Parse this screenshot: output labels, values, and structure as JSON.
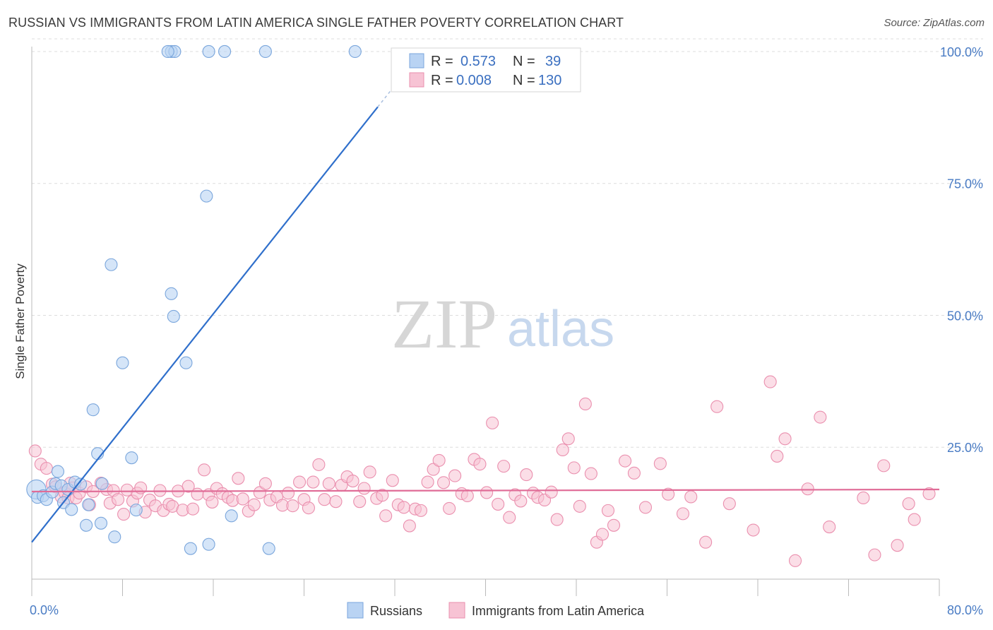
{
  "title": "RUSSIAN VS IMMIGRANTS FROM LATIN AMERICA SINGLE FATHER POVERTY CORRELATION CHART",
  "source": "Source: ZipAtlas.com",
  "watermark": {
    "zip": "ZIP",
    "atlas": "atlas"
  },
  "colors": {
    "blue_fill": "#b9d3f3",
    "blue_stroke": "#7aa6dc",
    "blue_line": "#2f6fcb",
    "pink_fill": "#f7c3d4",
    "pink_stroke": "#ea8fae",
    "pink_line": "#e06c97",
    "grid": "#dddddd",
    "axis": "#bbbbbb",
    "tick_text": "#4a7cc4"
  },
  "stats": {
    "r_label": "R =",
    "n_label": "N =",
    "series1": {
      "r": "0.573",
      "n": "39"
    },
    "series2": {
      "r": "0.008",
      "n": "130"
    }
  },
  "chart_data": {
    "type": "scatter",
    "title": "RUSSIAN VS IMMIGRANTS FROM LATIN AMERICA SINGLE FATHER POVERTY CORRELATION CHART",
    "xlabel": "",
    "ylabel": "Single Father Poverty",
    "xlim": [
      0,
      80
    ],
    "ylim": [
      0,
      102
    ],
    "x_ticks": [
      "0.0%",
      "80.0%"
    ],
    "y_ticks": [
      {
        "value": 25,
        "label": "25.0%"
      },
      {
        "value": 50,
        "label": "50.0%"
      },
      {
        "value": 75,
        "label": "75.0%"
      },
      {
        "value": 100,
        "label": "100.0%"
      }
    ],
    "legend_position": "bottom",
    "series": [
      {
        "name": "Russians",
        "trend": {
          "x0": 0,
          "y0": 7,
          "x1": 30.5,
          "y1": 89.5,
          "dash_x_end": 33
        },
        "points": [
          [
            0.4,
            17,
            1.6
          ],
          [
            0.5,
            15.5,
            1
          ],
          [
            1.0,
            15.8,
            1
          ],
          [
            1.3,
            15.1,
            1
          ],
          [
            1.8,
            16.5,
            1
          ],
          [
            2.1,
            18.1,
            1
          ],
          [
            2.3,
            20.4,
            1
          ],
          [
            2.6,
            17.7,
            1
          ],
          [
            2.8,
            14.5,
            1
          ],
          [
            3.2,
            17.0,
            1
          ],
          [
            3.5,
            13.2,
            1
          ],
          [
            3.8,
            18.4,
            1
          ],
          [
            4.3,
            18.0,
            1
          ],
          [
            4.8,
            10.2,
            1
          ],
          [
            5.0,
            14.1,
            1
          ],
          [
            5.4,
            32.1,
            1
          ],
          [
            5.8,
            23.8,
            1
          ],
          [
            6.1,
            10.6,
            1
          ],
          [
            6.2,
            18.1,
            1
          ],
          [
            7.0,
            59.6,
            1
          ],
          [
            7.3,
            8.0,
            1
          ],
          [
            8.0,
            41.0,
            1
          ],
          [
            8.8,
            23.0,
            1
          ],
          [
            9.2,
            13.1,
            1
          ],
          [
            12.3,
            54.1,
            1
          ],
          [
            12.5,
            49.8,
            1
          ],
          [
            13.6,
            41.0,
            1
          ],
          [
            15.4,
            72.6,
            1
          ],
          [
            14.0,
            5.8,
            1
          ],
          [
            15.6,
            6.6,
            1
          ],
          [
            17.6,
            12.0,
            1
          ],
          [
            20.9,
            5.8,
            1
          ],
          [
            12.3,
            100,
            1
          ],
          [
            12.6,
            100,
            1
          ],
          [
            15.6,
            100,
            1
          ],
          [
            17.0,
            100,
            1
          ],
          [
            20.6,
            100,
            1
          ],
          [
            28.5,
            100,
            1
          ],
          [
            12.0,
            100,
            1
          ]
        ]
      },
      {
        "name": "Immigrants from Latin America",
        "trend": {
          "x0": 0,
          "y0": 16.6,
          "x1": 80,
          "y1": 17
        },
        "points": [
          [
            0.3,
            24.3
          ],
          [
            0.8,
            21.8
          ],
          [
            1.3,
            21.0
          ],
          [
            1.8,
            18.0
          ],
          [
            2.1,
            17.5
          ],
          [
            2.6,
            15.6
          ],
          [
            2.9,
            16.4
          ],
          [
            3.2,
            15.4
          ],
          [
            3.4,
            18.2
          ],
          [
            3.6,
            17.3
          ],
          [
            3.9,
            15.4
          ],
          [
            4.2,
            16.3
          ],
          [
            4.8,
            17.5
          ],
          [
            5.1,
            14.1
          ],
          [
            5.4,
            16.6
          ],
          [
            6.1,
            18.2
          ],
          [
            6.6,
            17.0
          ],
          [
            6.9,
            14.4
          ],
          [
            7.2,
            16.8
          ],
          [
            7.6,
            15.1
          ],
          [
            8.1,
            12.3
          ],
          [
            8.4,
            16.9
          ],
          [
            8.9,
            14.8
          ],
          [
            9.3,
            16.3
          ],
          [
            9.6,
            17.3
          ],
          [
            10.0,
            12.7
          ],
          [
            10.4,
            15.0
          ],
          [
            10.9,
            13.9
          ],
          [
            11.3,
            16.8
          ],
          [
            11.6,
            13.0
          ],
          [
            12.1,
            14.2
          ],
          [
            12.4,
            13.8
          ],
          [
            12.9,
            16.7
          ],
          [
            13.3,
            13.1
          ],
          [
            13.8,
            17.6
          ],
          [
            14.2,
            13.3
          ],
          [
            14.6,
            16.1
          ],
          [
            15.2,
            20.7
          ],
          [
            15.6,
            16.0
          ],
          [
            15.9,
            14.6
          ],
          [
            16.3,
            17.2
          ],
          [
            16.8,
            16.2
          ],
          [
            17.3,
            15.5
          ],
          [
            17.7,
            14.9
          ],
          [
            18.2,
            19.1
          ],
          [
            18.6,
            15.2
          ],
          [
            19.1,
            12.9
          ],
          [
            19.6,
            14.1
          ],
          [
            20.1,
            16.4
          ],
          [
            20.6,
            18.1
          ],
          [
            21.0,
            15.0
          ],
          [
            21.6,
            15.6
          ],
          [
            22.1,
            14.0
          ],
          [
            22.6,
            16.3
          ],
          [
            23.0,
            13.9
          ],
          [
            23.6,
            18.4
          ],
          [
            24.0,
            15.1
          ],
          [
            24.4,
            13.5
          ],
          [
            24.8,
            18.4
          ],
          [
            25.3,
            21.7
          ],
          [
            25.8,
            15.1
          ],
          [
            26.2,
            18.1
          ],
          [
            26.8,
            14.7
          ],
          [
            27.3,
            17.8
          ],
          [
            27.8,
            19.4
          ],
          [
            28.3,
            18.6
          ],
          [
            28.9,
            14.7
          ],
          [
            29.3,
            17.2
          ],
          [
            29.8,
            20.3
          ],
          [
            30.4,
            15.3
          ],
          [
            30.9,
            15.9
          ],
          [
            31.2,
            12.0
          ],
          [
            31.8,
            18.7
          ],
          [
            32.3,
            14.1
          ],
          [
            32.8,
            13.6
          ],
          [
            33.3,
            10.1
          ],
          [
            33.8,
            13.3
          ],
          [
            34.3,
            13.0
          ],
          [
            34.9,
            18.4
          ],
          [
            35.4,
            20.8
          ],
          [
            35.9,
            22.5
          ],
          [
            36.3,
            18.3
          ],
          [
            36.8,
            13.4
          ],
          [
            37.3,
            19.6
          ],
          [
            37.9,
            16.2
          ],
          [
            38.4,
            15.8
          ],
          [
            39.0,
            22.7
          ],
          [
            39.5,
            21.8
          ],
          [
            40.1,
            16.4
          ],
          [
            40.6,
            29.6
          ],
          [
            41.1,
            14.2
          ],
          [
            41.6,
            21.4
          ],
          [
            42.1,
            11.7
          ],
          [
            42.6,
            16.0
          ],
          [
            43.1,
            14.8
          ],
          [
            43.6,
            19.8
          ],
          [
            44.2,
            16.3
          ],
          [
            44.6,
            15.5
          ],
          [
            45.2,
            15.0
          ],
          [
            45.8,
            16.5
          ],
          [
            46.3,
            11.3
          ],
          [
            46.8,
            24.5
          ],
          [
            47.3,
            26.6
          ],
          [
            47.8,
            21.1
          ],
          [
            48.3,
            13.8
          ],
          [
            48.8,
            33.2
          ],
          [
            49.3,
            20.0
          ],
          [
            49.8,
            7.0
          ],
          [
            50.3,
            8.5
          ],
          [
            50.8,
            13.0
          ],
          [
            51.3,
            10.2
          ],
          [
            52.3,
            22.4
          ],
          [
            53.1,
            20.1
          ],
          [
            54.1,
            13.6
          ],
          [
            55.4,
            21.9
          ],
          [
            56.1,
            16.1
          ],
          [
            57.4,
            12.4
          ],
          [
            58.1,
            15.6
          ],
          [
            59.4,
            7.0
          ],
          [
            60.4,
            32.7
          ],
          [
            61.5,
            14.3
          ],
          [
            63.6,
            9.3
          ],
          [
            65.1,
            37.4
          ],
          [
            65.7,
            23.3
          ],
          [
            66.4,
            26.6
          ],
          [
            67.3,
            3.5
          ],
          [
            68.4,
            17.1
          ],
          [
            69.5,
            30.7
          ],
          [
            70.3,
            9.9
          ],
          [
            73.3,
            15.4
          ],
          [
            74.3,
            4.6
          ],
          [
            75.1,
            21.5
          ],
          [
            76.3,
            6.4
          ],
          [
            77.3,
            14.3
          ],
          [
            77.8,
            11.3
          ],
          [
            79.1,
            16.2
          ]
        ]
      }
    ]
  }
}
